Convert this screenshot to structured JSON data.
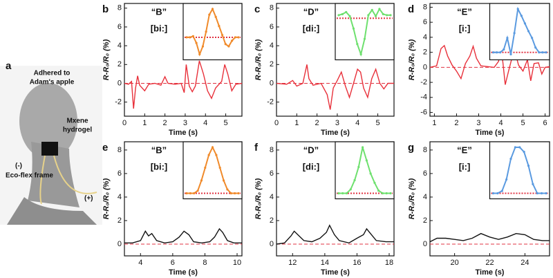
{
  "photo_panel": {
    "label": "a",
    "texts": [
      "Adhered to",
      "Adam's apple",
      "Mxene",
      "hydrogel",
      "(-)",
      "Eco-flex frame",
      "(+)"
    ]
  },
  "chart_data": [
    {
      "type": "line",
      "label": "b",
      "xlabel": "Time (s)",
      "ylabel": "R-R₀/R₀ (%)",
      "xlim": [
        0,
        5.8
      ],
      "xticks": [
        0,
        1,
        2,
        3,
        4,
        5
      ],
      "ylim": [
        -3.5,
        8.5
      ],
      "yticks": [
        -2,
        0,
        2,
        4,
        6,
        8
      ],
      "hline": 0,
      "hline_color": "#e03040",
      "x": [
        0,
        0.2,
        0.35,
        0.45,
        0.55,
        0.65,
        0.75,
        1.0,
        1.2,
        1.5,
        1.8,
        2.0,
        2.15,
        2.5,
        2.8,
        2.95,
        3.05,
        3.2,
        3.35,
        3.5,
        3.7,
        3.9,
        4.1,
        4.3,
        4.5,
        4.8,
        4.95,
        5.1,
        5.3,
        5.5,
        5.8
      ],
      "series": [
        {
          "color": "#e8303a",
          "values": [
            0,
            -0.1,
            0.2,
            -2.7,
            -0.5,
            0.8,
            -0.2,
            -0.8,
            -0.1,
            0,
            -0.2,
            0.7,
            0,
            -0.1,
            0,
            -1.0,
            2.0,
            -0.3,
            -0.9,
            -0.3,
            2.4,
            1.0,
            -0.8,
            -1.6,
            -0.5,
            0.2,
            2.0,
            1.0,
            -0.8,
            -0.1,
            0
          ]
        }
      ],
      "annotations": [
        {
          "text": "“B”",
          "color": "#f06a2a"
        },
        {
          "text": "[bi:]",
          "color": "#f06a2a"
        }
      ],
      "inset": {
        "color": "#f08a2a",
        "values": [
          0,
          0,
          0.1,
          -0.5,
          -1.5,
          -0.8,
          0.5,
          2.0,
          2.5,
          1.8,
          1.0,
          0.2,
          -0.6,
          -0.8,
          -0.3,
          0,
          0
        ]
      }
    },
    {
      "type": "line",
      "label": "c",
      "xlabel": "Time (s)",
      "ylabel": "R-R₀/R₀ (%)",
      "xlim": [
        0,
        5.8
      ],
      "xticks": [
        0,
        1,
        2,
        3,
        4,
        5
      ],
      "ylim": [
        -3.5,
        8.5
      ],
      "yticks": [
        -2,
        0,
        2,
        4,
        6,
        8
      ],
      "hline": 0,
      "hline_color": "#e03040",
      "x": [
        0,
        0.5,
        0.8,
        1.0,
        1.3,
        1.5,
        1.6,
        1.8,
        2.2,
        2.5,
        2.65,
        2.8,
        3.0,
        3.2,
        3.4,
        3.6,
        3.8,
        4.0,
        4.15,
        4.3,
        4.5,
        4.7,
        4.9,
        5.1,
        5.3,
        5.5,
        5.8
      ],
      "series": [
        {
          "color": "#e8303a",
          "values": [
            0,
            -0.1,
            0.3,
            -0.3,
            0,
            2.0,
            0.5,
            -0.2,
            0,
            -1.2,
            -2.8,
            -0.5,
            0.3,
            1.2,
            -0.3,
            -1.5,
            0,
            1.5,
            1.2,
            -0.5,
            -1.5,
            0.5,
            1.5,
            0,
            -0.6,
            0,
            0
          ]
        }
      ],
      "annotations": [
        {
          "text": "“D”",
          "color": "#5ed85e"
        },
        {
          "text": "[di:]",
          "color": "#5ed85e"
        }
      ],
      "inset": {
        "color": "#6ee06e",
        "values": [
          0.3,
          0.4,
          0.6,
          0.2,
          -1,
          -2.5,
          -3.5,
          -2,
          0.3,
          0.8,
          0.2,
          0.9,
          0.4,
          0.3,
          0.3
        ]
      }
    },
    {
      "type": "line",
      "label": "d",
      "xlabel": "Time (s)",
      "ylabel": "R-R₀/R₀ (%)",
      "xlim": [
        0.8,
        6.2
      ],
      "xticks": [
        1,
        2,
        3,
        4,
        5,
        6
      ],
      "ylim": [
        -6.5,
        8.5
      ],
      "yticks": [
        -6,
        -4,
        -2,
        0,
        2,
        4,
        6,
        8
      ],
      "hline": 0,
      "hline_color": "#e03040",
      "x": [
        0.8,
        1.1,
        1.3,
        1.45,
        1.6,
        1.8,
        2.0,
        2.2,
        2.4,
        2.6,
        2.75,
        2.9,
        3.1,
        3.4,
        3.7,
        3.9,
        4.0,
        4.1,
        4.2,
        4.35,
        4.5,
        4.65,
        4.8,
        5.0,
        5.2,
        5.35,
        5.5,
        5.7,
        5.85,
        6.0,
        6.2
      ],
      "series": [
        {
          "color": "#e8303a",
          "values": [
            0,
            0.2,
            2.5,
            2.9,
            1.5,
            0.3,
            -0.5,
            -1.5,
            0.5,
            1.5,
            2.8,
            1.2,
            0.2,
            0.1,
            0,
            0.8,
            3.0,
            0.5,
            -2.3,
            -0.5,
            1.2,
            2.0,
            0.3,
            -0.5,
            1.0,
            -1.8,
            0.5,
            0.6,
            -0.9,
            0,
            0.1
          ]
        }
      ],
      "annotations": [
        {
          "text": "“E”",
          "color": "#3a5fb8"
        },
        {
          "text": "[i:]",
          "color": "#3a5fb8"
        }
      ],
      "inset": {
        "color": "#5a9ae0",
        "values": [
          0,
          0,
          0,
          0.3,
          1.5,
          -0.2,
          2,
          4.5,
          3.8,
          3.0,
          2.2,
          1.5,
          0.5,
          0,
          0,
          0
        ]
      }
    },
    {
      "type": "line",
      "label": "e",
      "xlabel": "Time (s)",
      "ylabel": "R-R₀/R₀ (%)",
      "xlim": [
        3,
        10.3
      ],
      "xticks": [
        4,
        6,
        8,
        10
      ],
      "ylim": [
        -1,
        8.7
      ],
      "yticks": [
        0,
        2,
        4,
        6,
        8
      ],
      "hline": 0,
      "hline_color": "#e03040",
      "x": [
        3,
        3.5,
        4.0,
        4.3,
        4.5,
        4.7,
        5.0,
        5.5,
        6.0,
        6.4,
        6.7,
        7.0,
        7.3,
        7.8,
        8.3,
        8.6,
        8.9,
        9.1,
        9.4,
        9.8,
        10.3
      ],
      "series": [
        {
          "color": "#111111",
          "values": [
            0.1,
            0.1,
            0.3,
            1.1,
            0.7,
            0.9,
            0.3,
            0.1,
            0.2,
            0.6,
            1.1,
            0.8,
            0.2,
            0.1,
            0.2,
            0.6,
            1.3,
            1.0,
            0.3,
            0.1,
            0.1
          ]
        }
      ],
      "annotations": [
        {
          "text": "“B”",
          "color": "#f06a2a"
        },
        {
          "text": "[bi:]",
          "color": "#f06a2a"
        }
      ],
      "inset": {
        "color": "#f08a2a",
        "values": [
          0,
          0,
          0,
          0.2,
          1,
          2,
          3,
          3.6,
          3,
          2,
          1,
          0.3,
          0,
          0,
          0
        ]
      }
    },
    {
      "type": "line",
      "label": "f",
      "xlabel": "Time (s)",
      "ylabel": "R-R₀/R₀ (%)",
      "xlim": [
        11,
        18.3
      ],
      "xticks": [
        12,
        14,
        16,
        18
      ],
      "ylim": [
        -1,
        8.7
      ],
      "yticks": [
        0,
        2,
        4,
        6,
        8
      ],
      "hline": 0,
      "hline_color": "#e03040",
      "x": [
        11,
        11.5,
        11.9,
        12.1,
        12.4,
        12.7,
        13.2,
        13.7,
        14.1,
        14.3,
        14.6,
        14.9,
        15.5,
        16.0,
        16.4,
        16.6,
        16.9,
        17.2,
        17.8,
        18.3
      ],
      "series": [
        {
          "color": "#111111",
          "values": [
            0,
            0.1,
            0.7,
            1.1,
            0.7,
            0.3,
            0.2,
            0.5,
            1.0,
            1.6,
            0.8,
            0.3,
            0.1,
            0.5,
            0.8,
            1.3,
            0.8,
            0.3,
            0.2,
            0.2
          ]
        }
      ],
      "annotations": [
        {
          "text": "“D”",
          "color": "#5ed85e"
        },
        {
          "text": "[di:]",
          "color": "#5ed85e"
        }
      ],
      "inset": {
        "color": "#6ee06e",
        "values": [
          0,
          0,
          0,
          0.3,
          1,
          2,
          3.5,
          2.5,
          1.5,
          0.8,
          0.2,
          0,
          0,
          0
        ]
      }
    },
    {
      "type": "line",
      "label": "g",
      "xlabel": "Time (s)",
      "ylabel": "R-R₀/R₀ (%)",
      "xlim": [
        18.6,
        25.4
      ],
      "xticks": [
        20,
        22,
        24
      ],
      "ylim": [
        -1,
        8.7
      ],
      "yticks": [
        0,
        2,
        4,
        6,
        8
      ],
      "hline": 0,
      "hline_color": "#e03040",
      "x": [
        18.6,
        19,
        19.5,
        20,
        20.5,
        21,
        21.5,
        22,
        22.5,
        23,
        23.5,
        24,
        24.5,
        25,
        25.4
      ],
      "series": [
        {
          "color": "#111111",
          "values": [
            0.2,
            0.5,
            0.5,
            0.4,
            0.3,
            0.5,
            0.9,
            0.6,
            0.4,
            0.6,
            0.9,
            0.8,
            0.4,
            0.3,
            0.3
          ]
        }
      ],
      "annotations": [
        {
          "text": "“E”",
          "color": "#3a5fb8"
        },
        {
          "text": "[i:]",
          "color": "#3a5fb8"
        }
      ],
      "inset": {
        "color": "#5a9ae0",
        "values": [
          0,
          0,
          0.1,
          0.6,
          1.5,
          2,
          2,
          1.8,
          1.2,
          0.4,
          0,
          0,
          0
        ]
      }
    }
  ]
}
